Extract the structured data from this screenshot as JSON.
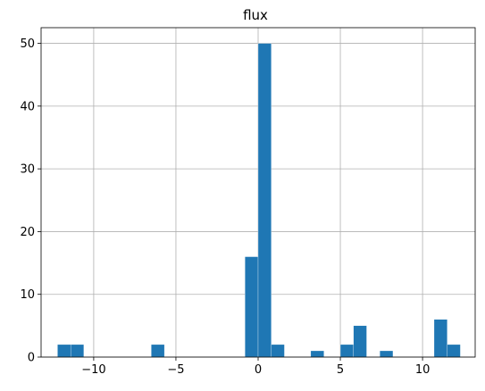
{
  "chart_data": {
    "type": "bar",
    "title": "flux",
    "xlabel": "",
    "ylabel": "",
    "xlim": [
      -13.2,
      13.2
    ],
    "ylim": [
      0,
      52.5
    ],
    "xticks": [
      -10,
      -5,
      0,
      5,
      10
    ],
    "yticks": [
      0,
      10,
      20,
      30,
      40,
      50
    ],
    "xtick_labels": [
      "−10",
      "−5",
      "0",
      "5",
      "10"
    ],
    "ytick_labels": [
      "0",
      "10",
      "20",
      "30",
      "40",
      "50"
    ],
    "grid": true,
    "bar_color": "#1f77b4",
    "bins": [
      {
        "x0": -12.2,
        "x1": -11.4,
        "count": 2
      },
      {
        "x0": -11.4,
        "x1": -10.6,
        "count": 2
      },
      {
        "x0": -6.5,
        "x1": -5.7,
        "count": 2
      },
      {
        "x0": -0.8,
        "x1": 0.0,
        "count": 16
      },
      {
        "x0": 0.0,
        "x1": 0.8,
        "count": 50
      },
      {
        "x0": 0.8,
        "x1": 1.6,
        "count": 2
      },
      {
        "x0": 3.2,
        "x1": 4.0,
        "count": 1
      },
      {
        "x0": 5.0,
        "x1": 5.8,
        "count": 2
      },
      {
        "x0": 5.8,
        "x1": 6.6,
        "count": 5
      },
      {
        "x0": 7.4,
        "x1": 8.2,
        "count": 1
      },
      {
        "x0": 10.7,
        "x1": 11.5,
        "count": 6
      },
      {
        "x0": 11.5,
        "x1": 12.3,
        "count": 2
      }
    ]
  }
}
